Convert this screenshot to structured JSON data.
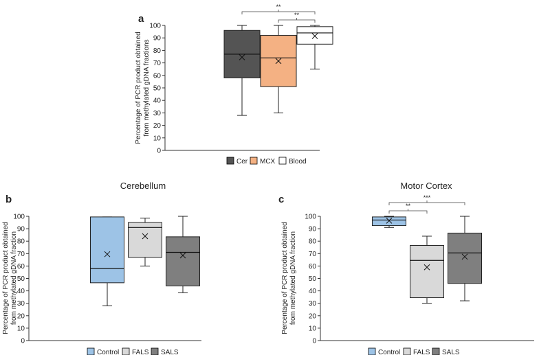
{
  "chart_data": [
    {
      "id": "a",
      "type": "box",
      "panel_label": "a",
      "title": "",
      "ylabel_lines": [
        "Percentage of PCR product obtained",
        "from methylated gDNA fractions"
      ],
      "ylim": [
        0,
        100
      ],
      "yticks": [
        0,
        10,
        20,
        30,
        40,
        50,
        60,
        70,
        80,
        90,
        100
      ],
      "boxes": [
        {
          "name": "Cer",
          "min": 28,
          "q1": 58,
          "median": 77,
          "q3": 96,
          "max": 100,
          "mean": 74.5,
          "color": "#545454"
        },
        {
          "name": "MCX",
          "min": 30,
          "q1": 51,
          "median": 74,
          "q3": 92,
          "max": 100,
          "mean": 71.5,
          "color": "#f4b183"
        },
        {
          "name": "Blood",
          "min": 65,
          "q1": 85,
          "median": 94,
          "q3": 99,
          "max": 100,
          "mean": 91.5,
          "color": "#ffffff"
        }
      ],
      "significance": [
        {
          "from": 0,
          "to": 2,
          "label": "**"
        },
        {
          "from": 1,
          "to": 2,
          "label": "**"
        }
      ],
      "legend": [
        "Cer",
        "MCX",
        "Blood"
      ]
    },
    {
      "id": "b",
      "type": "box",
      "panel_label": "b",
      "title": "Cerebellum",
      "ylabel_lines": [
        "Percentage of PCR product obtained",
        "from methylated gDNA fraction"
      ],
      "ylim": [
        0,
        100
      ],
      "yticks": [
        0,
        10,
        20,
        30,
        40,
        50,
        60,
        70,
        80,
        90,
        100
      ],
      "boxes": [
        {
          "name": "Control",
          "min": 28,
          "q1": 46.5,
          "median": 58,
          "q3": 99.5,
          "max": 99.5,
          "mean": 69.5,
          "color": "#9dc3e6"
        },
        {
          "name": "FALS",
          "min": 60,
          "q1": 67,
          "median": 91,
          "q3": 95,
          "max": 98.5,
          "mean": 84,
          "color": "#d9d9d9"
        },
        {
          "name": "SALS",
          "min": 38.5,
          "q1": 44,
          "median": 71,
          "q3": 83.5,
          "max": 100,
          "mean": 68.5,
          "color": "#7f7f7f"
        }
      ],
      "significance": [],
      "legend": [
        "Control",
        "FALS",
        "SALS"
      ]
    },
    {
      "id": "c",
      "type": "box",
      "panel_label": "c",
      "title": "Motor Cortex",
      "ylabel_lines": [
        "Percentage of PCR product obtained",
        "from methylated gDNA fraction"
      ],
      "ylim": [
        0,
        100
      ],
      "yticks": [
        0,
        10,
        20,
        30,
        40,
        50,
        60,
        70,
        80,
        90,
        100
      ],
      "boxes": [
        {
          "name": "Control",
          "min": 91,
          "q1": 92.5,
          "median": 97,
          "q3": 99.5,
          "max": 100,
          "mean": 96.5,
          "color": "#9dc3e6"
        },
        {
          "name": "FALS",
          "min": 30,
          "q1": 34.5,
          "median": 64.5,
          "q3": 76.5,
          "max": 84,
          "mean": 59,
          "color": "#d9d9d9"
        },
        {
          "name": "SALS",
          "min": 32,
          "q1": 46,
          "median": 70.5,
          "q3": 86.5,
          "max": 100,
          "mean": 67.5,
          "color": "#7f7f7f"
        }
      ],
      "significance": [
        {
          "from": 0,
          "to": 1,
          "label": "**"
        },
        {
          "from": 0,
          "to": 2,
          "label": "***"
        }
      ],
      "legend": [
        "Control",
        "FALS",
        "SALS"
      ]
    }
  ]
}
